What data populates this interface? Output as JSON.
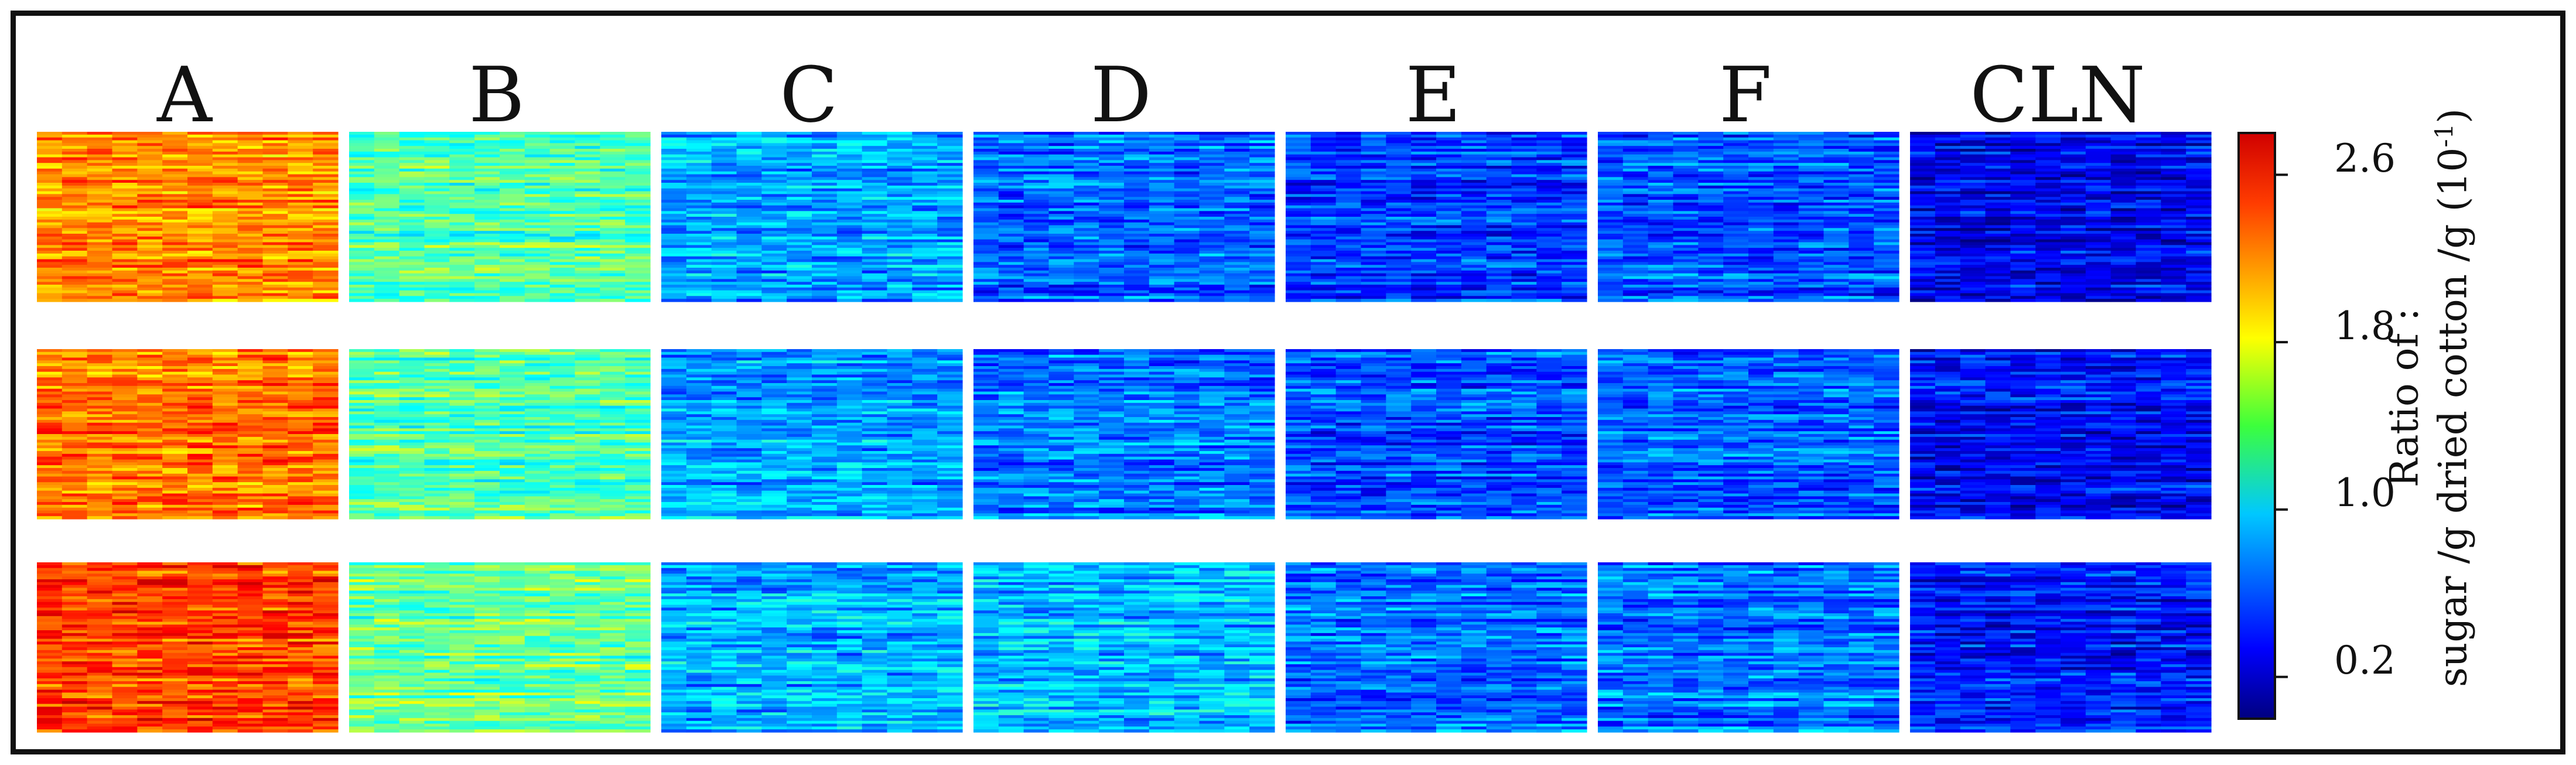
{
  "chart_data": {
    "type": "heatmap",
    "title": "",
    "panel_labels": [
      "A",
      "B",
      "C",
      "D",
      "E",
      "F",
      "CLN"
    ],
    "replicate_rows": 3,
    "grid_rows_per_panel": 60,
    "grid_cols_per_panel": 12,
    "panel_mean_values": [
      [
        2.05,
        1.3,
        0.8,
        0.62,
        0.5,
        0.58,
        0.32
      ],
      [
        2.12,
        1.28,
        0.78,
        0.66,
        0.56,
        0.62,
        0.36
      ],
      [
        2.28,
        1.34,
        0.84,
        0.86,
        0.64,
        0.66,
        0.4
      ]
    ],
    "colorbar": {
      "label_line1": "Ratio of :",
      "label_line2": "sugar /g dried cotton /g (10",
      "label_exponent": "-1",
      "label_close": ")",
      "range": [
        0.0,
        2.8
      ],
      "ticks": [
        {
          "value": 2.6,
          "label": "2.6"
        },
        {
          "value": 1.8,
          "label": "1.8"
        },
        {
          "value": 1.0,
          "label": "1.0"
        },
        {
          "value": 0.2,
          "label": "0.2"
        }
      ],
      "colormap": "jet"
    }
  }
}
